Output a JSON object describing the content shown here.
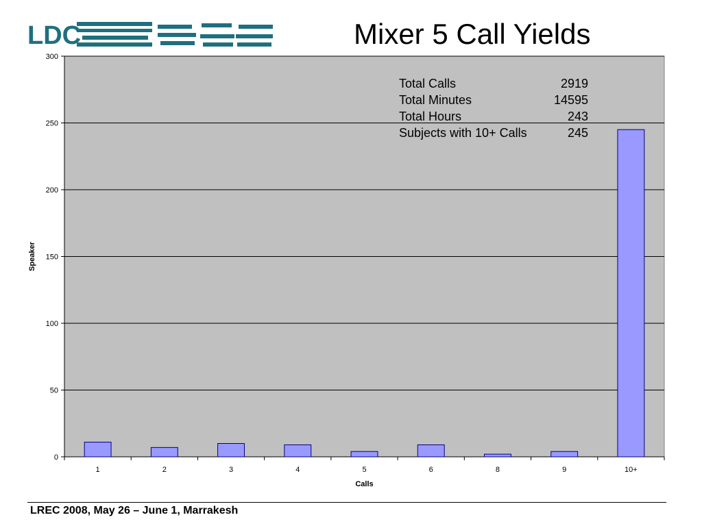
{
  "slide": {
    "title": "Mixer 5 Call Yields",
    "footer": "LREC 2008, May 26 – June 1, Marrakesh",
    "logo_text": "LDC"
  },
  "stats": [
    {
      "label": "Total Calls",
      "value": "2919"
    },
    {
      "label": "Total Minutes",
      "value": "14595"
    },
    {
      "label": "Total Hours",
      "value": "243"
    },
    {
      "label": "Subjects with 10+ Calls",
      "value": "245"
    }
  ],
  "chart_data": {
    "type": "bar",
    "categories": [
      "1",
      "2",
      "3",
      "4",
      "5",
      "6",
      "8",
      "9",
      "10+"
    ],
    "values": [
      11,
      7,
      10,
      9,
      4,
      9,
      2,
      4,
      245
    ],
    "xlabel": "Calls",
    "ylabel": "Speaker",
    "ylim": [
      0,
      300
    ],
    "yticks": [
      0,
      50,
      100,
      150,
      200,
      250,
      300
    ],
    "grid": true,
    "colors": {
      "plot_bg": "#c0c0c0",
      "bar_fill": "#9999ff",
      "bar_stroke": "#000080",
      "gridline": "#000000"
    }
  }
}
